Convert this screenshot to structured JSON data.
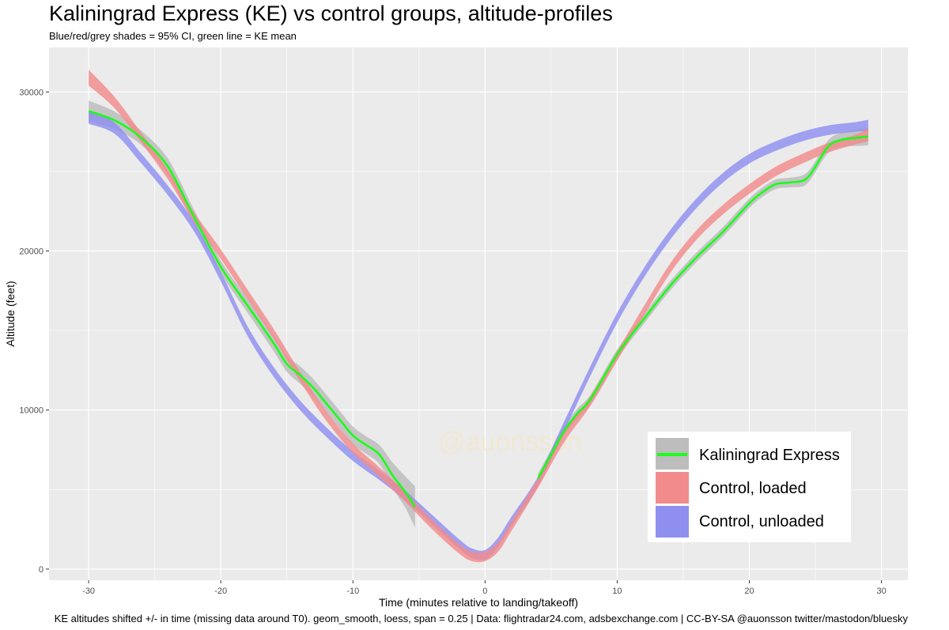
{
  "title": "Kaliningrad Express (KE) vs control groups, altitude-profiles",
  "subtitle": "Blue/red/grey shades = 95% CI, green line = KE mean",
  "caption": "KE altitudes shifted +/- in time (missing data around T0). geom_smooth, loess, span = 0.25 | Data: flightradar24.com, adsbexchange.com | CC-BY-SA @auonsson twitter/mastodon/bluesky",
  "watermark": "@auonsson",
  "colors": {
    "panel": "#ebebeb",
    "grid": "#ffffff",
    "ke_line": "#18ff18",
    "ke_ci": "#bdbdbd",
    "loaded": "#f28b8b",
    "unloaded": "#8f8ff0"
  },
  "chart_data": {
    "type": "line",
    "title": "Kaliningrad Express (KE) vs control groups, altitude-profiles",
    "xlabel": "Time (minutes relative to landing/takeoff)",
    "ylabel": "Altitude (feet)",
    "xlim": [
      -33,
      32
    ],
    "ylim": [
      -700,
      32800
    ],
    "xticks": [
      -30,
      -20,
      -10,
      0,
      10,
      20,
      30
    ],
    "xtick_labels": [
      "-30",
      "-20",
      "-10",
      "0",
      "10",
      "20",
      "30"
    ],
    "yticks": [
      0,
      10000,
      20000,
      30000
    ],
    "ytick_labels": [
      "0",
      "10000",
      "20000",
      "30000"
    ],
    "grid": true,
    "legend_position": "bottom-right",
    "series": [
      {
        "name": "Control, unloaded",
        "kind": "ribbon",
        "x": [
          -30,
          -28,
          -26,
          -24,
          -22,
          -20,
          -18,
          -16,
          -14,
          -12,
          -10,
          -8,
          -6,
          -4,
          -2,
          -1,
          0,
          1,
          2,
          4,
          6,
          8,
          10,
          12,
          14,
          16,
          18,
          20,
          22,
          24,
          26,
          28,
          29
        ],
        "y": [
          28400,
          27700,
          25800,
          23800,
          21500,
          18400,
          15000,
          12400,
          10300,
          8600,
          7100,
          5900,
          4600,
          3100,
          1600,
          1000,
          900,
          1700,
          3000,
          5500,
          9000,
          12500,
          15800,
          18600,
          21000,
          23000,
          24600,
          25800,
          26600,
          27200,
          27600,
          27800,
          27900
        ],
        "ci": [
          400,
          350,
          300,
          300,
          300,
          300,
          300,
          300,
          300,
          300,
          300,
          300,
          300,
          300,
          300,
          300,
          300,
          300,
          300,
          300,
          300,
          300,
          300,
          300,
          300,
          300,
          300,
          300,
          300,
          300,
          300,
          300,
          350
        ]
      },
      {
        "name": "Control, loaded",
        "kind": "ribbon",
        "x": [
          -30,
          -28,
          -26,
          -24,
          -22,
          -20,
          -18,
          -16,
          -14,
          -12,
          -10,
          -8,
          -6,
          -4,
          -2,
          -1,
          0,
          1,
          2,
          4,
          6,
          8,
          10,
          12,
          14,
          16,
          18,
          20,
          22,
          24,
          26,
          28,
          29
        ],
        "y": [
          30900,
          29300,
          27100,
          24800,
          22100,
          19800,
          17300,
          14800,
          12100,
          9600,
          7600,
          6100,
          4500,
          2800,
          1300,
          800,
          800,
          1400,
          2700,
          5400,
          8300,
          10600,
          13400,
          16200,
          18900,
          21000,
          22600,
          23900,
          25000,
          25800,
          26500,
          27000,
          27300
        ],
        "ci": [
          500,
          350,
          300,
          300,
          300,
          300,
          300,
          300,
          300,
          300,
          300,
          300,
          300,
          300,
          300,
          300,
          300,
          300,
          300,
          300,
          300,
          300,
          300,
          300,
          300,
          300,
          300,
          300,
          300,
          300,
          300,
          300,
          400
        ]
      },
      {
        "name": "Kaliningrad Express",
        "kind": "line_with_ci",
        "x": [
          -30,
          -28,
          -26,
          -24,
          -22,
          -20,
          -18,
          -16,
          -15,
          -14,
          -13,
          -12,
          -11,
          -10,
          -9,
          -8,
          -7,
          -6,
          -5.3,
          4,
          5,
          6,
          7,
          8,
          10,
          12,
          14,
          16,
          18,
          20,
          21,
          22,
          23,
          24,
          24.5,
          25,
          26,
          27,
          28,
          29
        ],
        "y": [
          28800,
          28200,
          27100,
          25300,
          22100,
          19000,
          16600,
          14200,
          12900,
          12200,
          11400,
          10400,
          9400,
          8400,
          7800,
          7200,
          5900,
          4800,
          3900,
          5700,
          7200,
          8700,
          9800,
          10700,
          13500,
          15700,
          17800,
          19600,
          21200,
          23000,
          23700,
          24200,
          24300,
          24400,
          24700,
          25300,
          26600,
          27000,
          27100,
          27200
        ],
        "ci": [
          650,
          550,
          450,
          500,
          450,
          400,
          450,
          500,
          500,
          550,
          550,
          550,
          550,
          550,
          550,
          600,
          800,
          1000,
          1300,
          300,
          300,
          300,
          300,
          300,
          300,
          300,
          300,
          300,
          300,
          300,
          300,
          300,
          300,
          350,
          350,
          350,
          400,
          450,
          500,
          550
        ]
      }
    ]
  }
}
